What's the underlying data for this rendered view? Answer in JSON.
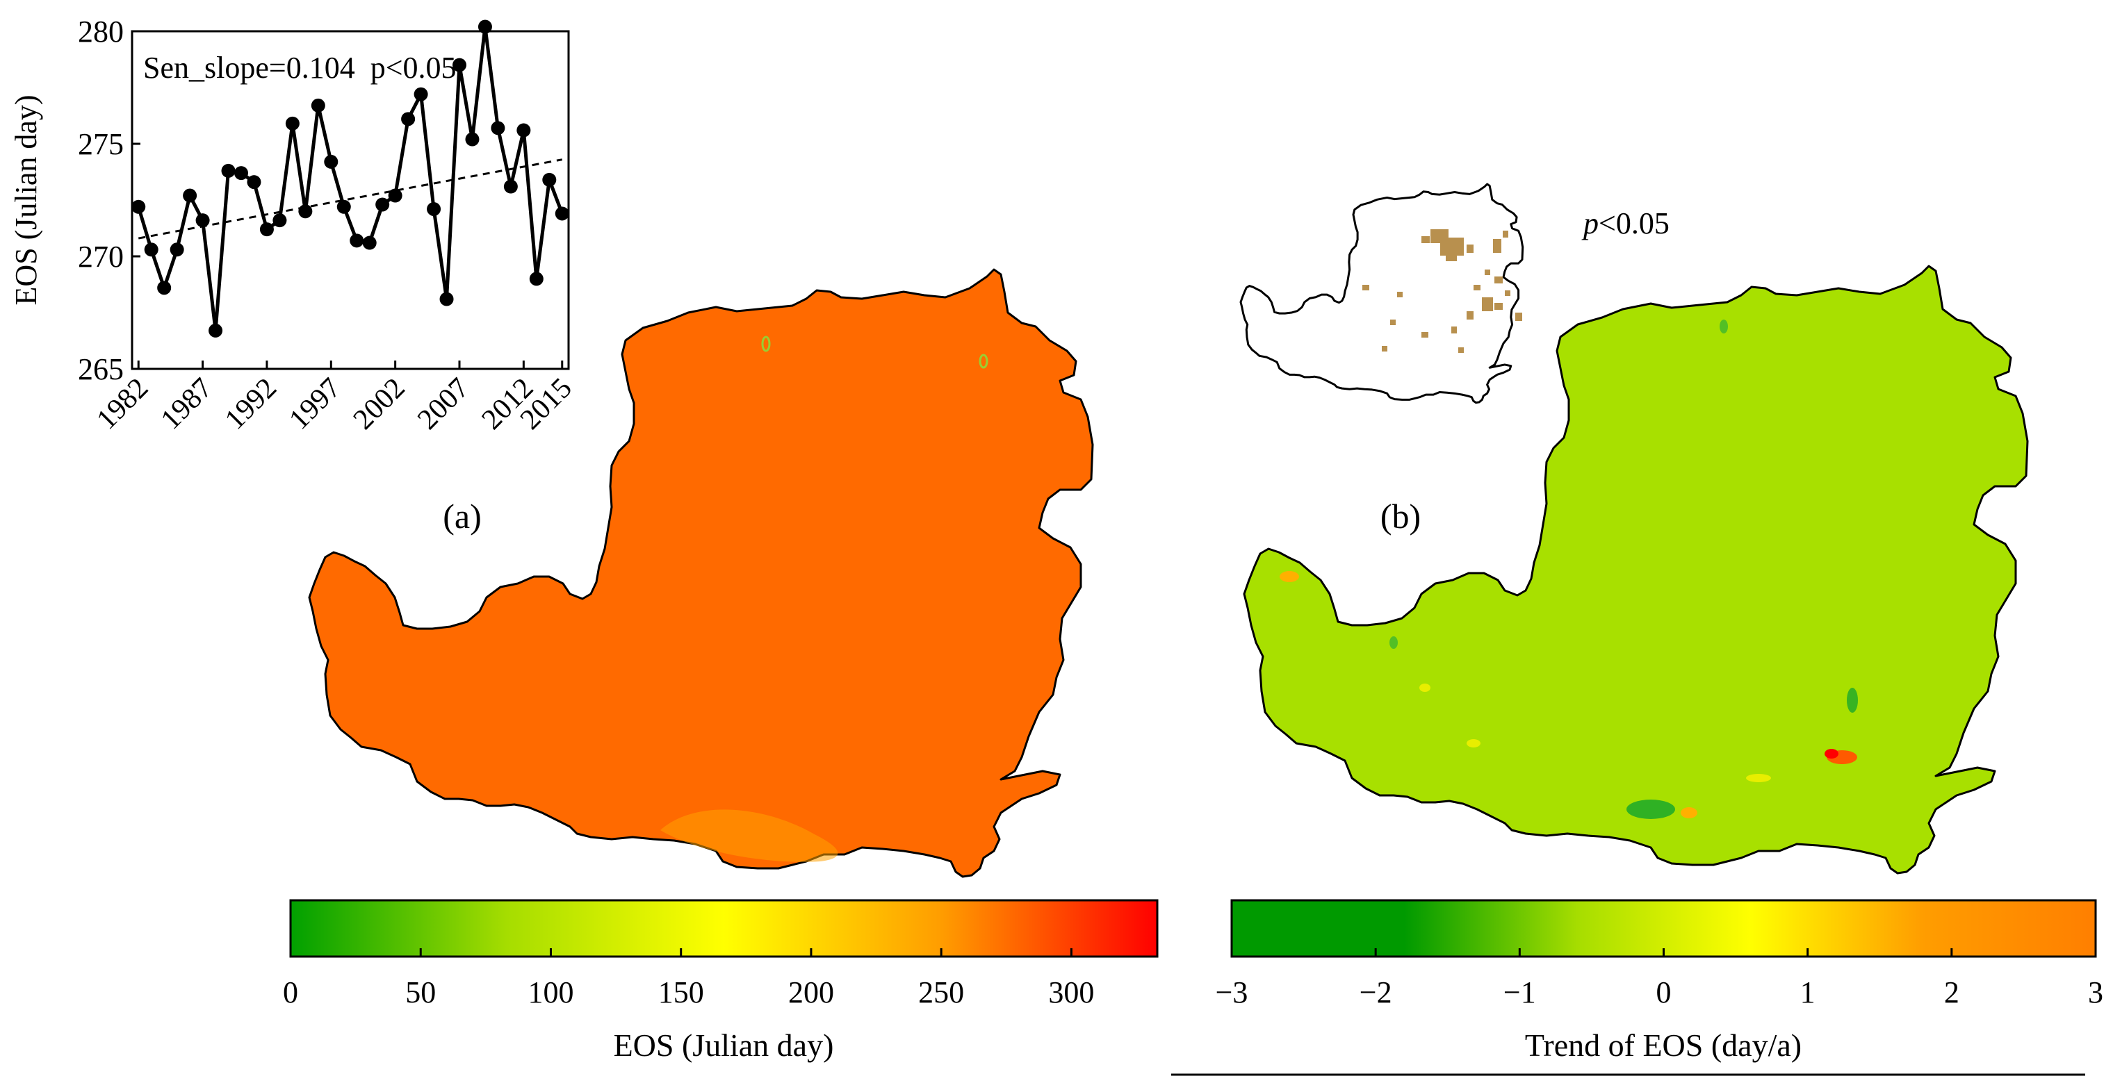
{
  "panel_a_label": "(a)",
  "panel_b_label": "(b)",
  "inset_b_label": "p<0.05",
  "colorbar_a": {
    "label": "EOS (Julian day)",
    "ticks": [
      "0",
      "50",
      "100",
      "150",
      "200",
      "250",
      "300"
    ],
    "range": [
      0,
      333
    ],
    "colors": [
      "#00a000",
      "#a6dd00",
      "#ffff00",
      "#ff9d00",
      "#ff0000"
    ]
  },
  "colorbar_b": {
    "label": "Trend of EOS (day/a)",
    "ticks": [
      "−3",
      "−2",
      "−1",
      "0",
      "1",
      "2",
      "3"
    ],
    "range": [
      -3,
      3
    ],
    "colors": [
      "#009a00",
      "#009a00",
      "#a6dd00",
      "#ffff00",
      "#ff9d00",
      "#ff7f00"
    ]
  },
  "map_colors": {
    "panel_a_fill": "#ff6a00",
    "panel_b_fill": "#a8e000",
    "inset_significant": "#b8904e"
  },
  "chart_data": {
    "type": "line",
    "ylabel": "EOS (Julian day)",
    "annotation": "Sen_slope=0.104  p<0.05",
    "x_tick_labels": [
      "1982",
      "1987",
      "1992",
      "1997",
      "2002",
      "2007",
      "2012",
      "2015"
    ],
    "yticks": [
      265,
      270,
      275,
      280
    ],
    "ylim": [
      265,
      280
    ],
    "xlim": [
      1981.5,
      2015.5
    ],
    "x": [
      1982,
      1983,
      1984,
      1985,
      1986,
      1987,
      1988,
      1989,
      1990,
      1991,
      1992,
      1993,
      1994,
      1995,
      1996,
      1997,
      1998,
      1999,
      2000,
      2001,
      2002,
      2003,
      2004,
      2005,
      2006,
      2007,
      2008,
      2009,
      2010,
      2011,
      2012,
      2013,
      2014,
      2015
    ],
    "values": [
      272.2,
      270.3,
      268.6,
      270.3,
      272.7,
      271.6,
      266.7,
      273.8,
      273.7,
      273.3,
      271.2,
      271.6,
      275.9,
      272.0,
      276.7,
      274.2,
      272.2,
      270.7,
      270.6,
      272.3,
      272.7,
      276.1,
      277.2,
      272.1,
      268.1,
      278.5,
      275.2,
      280.2,
      275.7,
      273.1,
      275.6,
      269.0,
      273.4,
      271.9
    ],
    "trend_line": {
      "x": [
        1982,
        2015
      ],
      "y": [
        270.8,
        274.3
      ]
    }
  }
}
